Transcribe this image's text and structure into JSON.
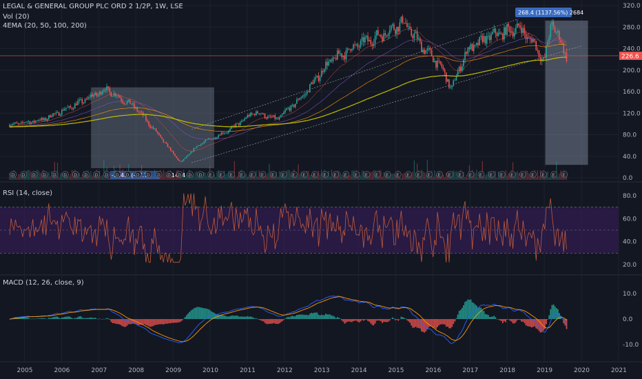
{
  "header": {
    "title": "LEGAL & GENERAL GROUP PLC ORD 2 1/2P, 1W, LSE",
    "volume": "Vol (20)",
    "ema": "4EMA (20, 50, 100, 200)"
  },
  "rsi_label": "RSI (14, close)",
  "macd_label": "MACD (12, 26, close, 9)",
  "last_price": "226.6",
  "measure_top": "268.4 (1137.56%) 2684",
  "measure_bottom": "-144.4 (-87.7",
  "measure_bottom_tail": "-1444",
  "colors": {
    "background": "#131722",
    "up": "#26a69a",
    "down": "#ef5350",
    "ema200": "#c6c300",
    "rsi_line": "#c45b3a",
    "rsi_band": "#3a1d5e",
    "macd_line": "#2962ff",
    "signal_line": "#ff9800",
    "box": "#8a95a8",
    "label_bg": "#3a6bbf"
  },
  "chart_data": [
    {
      "type": "line",
      "name": "price",
      "x": [
        2004.6,
        2005.5,
        2006.5,
        2007.2,
        2008.0,
        2008.6,
        2009.2,
        2009.7,
        2010.5,
        2011.2,
        2011.8,
        2012.5,
        2013.2,
        2014.0,
        2014.6,
        2015.2,
        2015.7,
        2016.2,
        2016.5,
        2016.9,
        2017.5,
        2018.0,
        2018.3,
        2018.7,
        2019.0,
        2019.2,
        2019.6
      ],
      "y": [
        98,
        108,
        140,
        165,
        130,
        80,
        28,
        62,
        88,
        122,
        108,
        152,
        215,
        248,
        265,
        290,
        245,
        208,
        165,
        235,
        262,
        272,
        280,
        252,
        215,
        290,
        226.6
      ],
      "ylim": [
        0,
        320
      ],
      "yticks": [
        0.0,
        40.0,
        80.0,
        120.0,
        160.0,
        200.0,
        240.0,
        280.0,
        320.0
      ]
    },
    {
      "type": "line",
      "name": "RSI",
      "ylim": [
        15,
        85
      ],
      "yticks": [
        20.0,
        40.0,
        60.0,
        80.0
      ],
      "bands": [
        30,
        70
      ]
    },
    {
      "type": "bar",
      "name": "MACD",
      "ylim": [
        -15,
        15
      ],
      "yticks": [
        -10.0,
        0.0,
        10.0
      ]
    }
  ],
  "xaxis": {
    "ticks": [
      "2005",
      "2006",
      "2007",
      "2008",
      "2009",
      "2010",
      "2011",
      "2012",
      "2013",
      "2014",
      "2015",
      "2016",
      "2017",
      "2018",
      "2019",
      "2020",
      "2021"
    ]
  }
}
